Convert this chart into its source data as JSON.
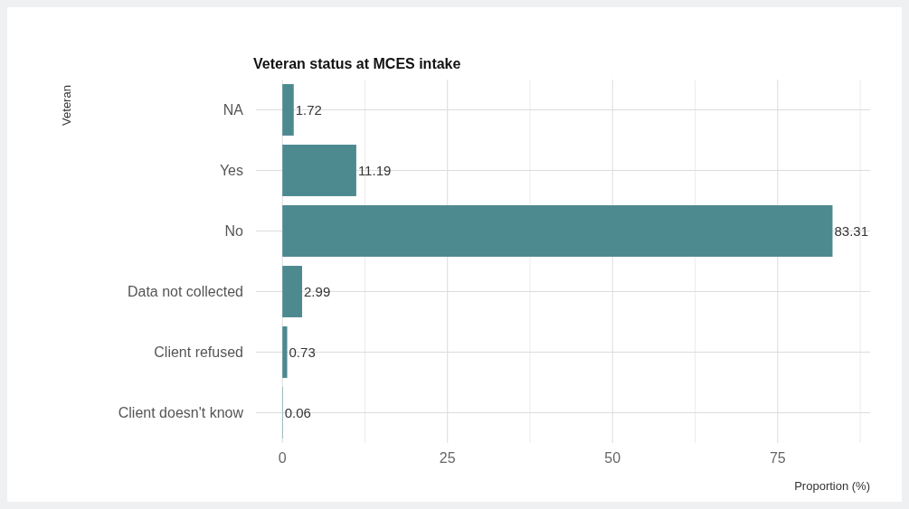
{
  "chart_data": {
    "type": "bar",
    "orientation": "horizontal",
    "title": "Veteran status at MCES intake",
    "xlabel": "Proportion (%)",
    "ylabel": "Veteran",
    "categories": [
      "NA",
      "Yes",
      "No",
      "Data not collected",
      "Client refused",
      "Client doesn't know"
    ],
    "values": [
      1.72,
      11.19,
      83.31,
      2.99,
      0.73,
      0.06
    ],
    "color": "#4d8a90",
    "data_labels": true,
    "xlim": [
      -4,
      89
    ],
    "xticks": [
      0,
      {
        "value": 12.5,
        "label": null
      },
      25,
      {
        "value": 37.5,
        "label": null
      },
      50,
      {
        "value": 62.5,
        "label": null
      },
      75,
      {
        "value": 87.5,
        "label": null
      }
    ],
    "grid": true
  }
}
